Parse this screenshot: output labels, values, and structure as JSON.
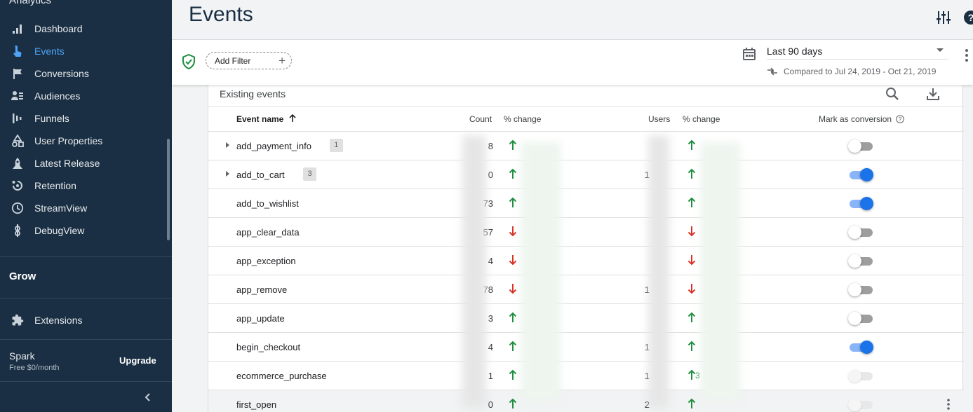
{
  "sidebar": {
    "top_label": "Analytics",
    "nav": [
      {
        "label": "Dashboard",
        "icon": "bar-chart-icon",
        "active": false
      },
      {
        "label": "Events",
        "icon": "touch-icon",
        "active": true
      },
      {
        "label": "Conversions",
        "icon": "flag-icon",
        "active": false
      },
      {
        "label": "Audiences",
        "icon": "audience-icon",
        "active": false
      },
      {
        "label": "Funnels",
        "icon": "funnel-icon",
        "active": false
      },
      {
        "label": "User Properties",
        "icon": "shapes-icon",
        "active": false
      },
      {
        "label": "Latest Release",
        "icon": "release-icon",
        "active": false
      },
      {
        "label": "Retention",
        "icon": "retention-icon",
        "active": false
      },
      {
        "label": "StreamView",
        "icon": "clock-icon",
        "active": false
      },
      {
        "label": "DebugView",
        "icon": "debug-icon",
        "active": false
      }
    ],
    "section": "Grow",
    "extensions": "Extensions",
    "plan_name": "Spark",
    "plan_price": "Free $0/month",
    "upgrade": "Upgrade"
  },
  "header": {
    "title": "Events"
  },
  "filter": {
    "add_filter": "Add Filter",
    "date_range": "Last 90 days",
    "compare": "Compared to Jul 24, 2019 - Oct 21, 2019"
  },
  "card": {
    "title": "Existing events",
    "columns": {
      "event_name": "Event name",
      "count": "Count",
      "count_change": "% change",
      "users": "Users",
      "users_change": "% change",
      "conversion": "Mark as conversion"
    },
    "rows": [
      {
        "name": "add_payment_info",
        "badge": "1",
        "count": "8",
        "count_dir": "up",
        "users": "",
        "users_dir": "up",
        "users_pct": "",
        "conversion": "off",
        "expandable": true
      },
      {
        "name": "add_to_cart",
        "badge": "3",
        "count": "0",
        "count_dir": "up",
        "users": "1",
        "users_dir": "up",
        "users_pct": "",
        "conversion": "on",
        "expandable": true
      },
      {
        "name": "add_to_wishlist",
        "badge": "",
        "count": "73",
        "count_dir": "up",
        "users": "",
        "users_dir": "up",
        "users_pct": "",
        "conversion": "on",
        "expandable": false
      },
      {
        "name": "app_clear_data",
        "badge": "",
        "count": "57",
        "count_dir": "down",
        "users": "",
        "users_dir": "down",
        "users_pct": "",
        "conversion": "off",
        "expandable": false
      },
      {
        "name": "app_exception",
        "badge": "",
        "count": "4",
        "count_dir": "down",
        "users": "",
        "users_dir": "down",
        "users_pct": "",
        "conversion": "off",
        "expandable": false
      },
      {
        "name": "app_remove",
        "badge": "",
        "count": "78",
        "count_dir": "down",
        "users": "1",
        "users_dir": "down",
        "users_pct": "",
        "conversion": "off",
        "expandable": false
      },
      {
        "name": "app_update",
        "badge": "",
        "count": "3",
        "count_dir": "up",
        "users": "",
        "users_dir": "up",
        "users_pct": "",
        "conversion": "off",
        "expandable": false
      },
      {
        "name": "begin_checkout",
        "badge": "",
        "count": "4",
        "count_dir": "up",
        "users": "1",
        "users_dir": "up",
        "users_pct": "",
        "conversion": "on",
        "expandable": false
      },
      {
        "name": "ecommerce_purchase",
        "badge": "",
        "count": "1",
        "count_dir": "up",
        "users": "1",
        "users_dir": "up",
        "users_pct": "3",
        "conversion": "disabled",
        "expandable": false
      },
      {
        "name": "first_open",
        "badge": "",
        "count": "0",
        "count_dir": "up",
        "users": "2",
        "users_dir": "up",
        "users_pct": "",
        "conversion": "disabled",
        "expandable": false,
        "hovered": true
      }
    ]
  },
  "colors": {
    "sidebar_bg": "#1a2f43",
    "accent": "#4fa3f7",
    "toggle_on": "#1a73e8",
    "up": "#1e8e3e",
    "down": "#d93025"
  }
}
